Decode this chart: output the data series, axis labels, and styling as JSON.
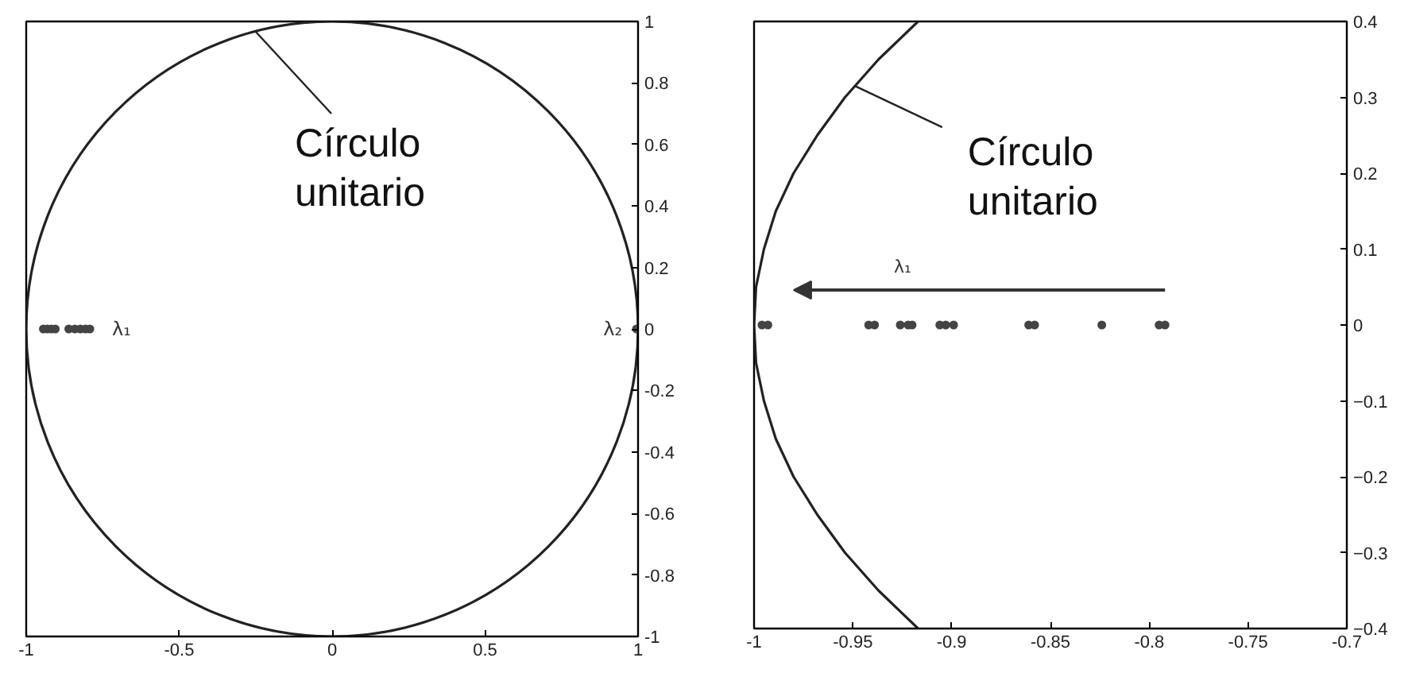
{
  "chart_data": [
    {
      "type": "scatter",
      "xlim": [
        -1,
        1
      ],
      "ylim": [
        -1,
        1
      ],
      "xticks": [
        -1,
        -0.5,
        0,
        0.5,
        1
      ],
      "yticks": [
        -1,
        -0.8,
        -0.6,
        -0.4,
        -0.2,
        0,
        0.2,
        0.4,
        0.6,
        0.8,
        1
      ],
      "grid": false,
      "series": [
        {
          "color": "#444444",
          "marker": "circle",
          "x": [
            -0.944,
            -0.931,
            -0.918,
            -0.905,
            -0.861,
            -0.841,
            -0.823,
            -0.806,
            -0.792,
            0.995
          ],
          "values": [
            0,
            0,
            0,
            0,
            0,
            0,
            0,
            0,
            0,
            0
          ]
        }
      ],
      "annotations": [
        "Círculo unitario",
        {
          "text": "λ₁",
          "x": -0.792,
          "y": 0
        },
        {
          "text": "λ₂",
          "x": 0.995,
          "y": 0
        }
      ]
    },
    {
      "type": "scatter",
      "xlim": [
        -1,
        -0.7
      ],
      "ylim": [
        -0.4,
        0.4
      ],
      "xticks": [
        -1,
        -0.95,
        -0.9,
        -0.85,
        -0.8,
        -0.75,
        -0.7
      ],
      "yticks": [
        {
          "value": -0.4,
          "label": "−0.4"
        },
        {
          "value": -0.3,
          "label": "−0.3"
        },
        {
          "value": -0.2,
          "label": "−0.2"
        },
        {
          "value": -0.1,
          "label": "−0.1"
        },
        0,
        0.1,
        0.2,
        0.3,
        0.4
      ],
      "grid": false,
      "series": [
        {
          "type": "line",
          "color": "#222222",
          "x": [
            -0.917,
            -0.937,
            -0.954,
            -0.968,
            -0.98,
            -0.989,
            -0.995,
            -0.999,
            -1,
            -0.999,
            -0.995,
            -0.989,
            -0.98,
            -0.968,
            -0.954,
            -0.937,
            -0.917
          ],
          "values": [
            -0.4,
            -0.35,
            -0.3,
            -0.25,
            -0.2,
            -0.15,
            -0.1,
            -0.05,
            0,
            0.05,
            0.1,
            0.15,
            0.2,
            0.25,
            0.3,
            0.35,
            0.4
          ]
        },
        {
          "color": "#444444",
          "marker": "circle",
          "x": [
            -0.996,
            -0.993,
            -0.942,
            -0.939,
            -0.926,
            -0.922,
            -0.92,
            -0.906,
            -0.903,
            -0.899,
            -0.861,
            -0.858,
            -0.824,
            -0.795,
            -0.792
          ],
          "values": [
            0,
            0,
            0,
            0,
            0,
            0,
            0,
            0,
            0,
            0,
            0,
            0,
            0,
            0,
            0
          ]
        }
      ],
      "annotations": [
        {
          "text": "Círculo unitario",
          "x": -0.949,
          "y": 0.315
        },
        "λ₁"
      ]
    }
  ]
}
